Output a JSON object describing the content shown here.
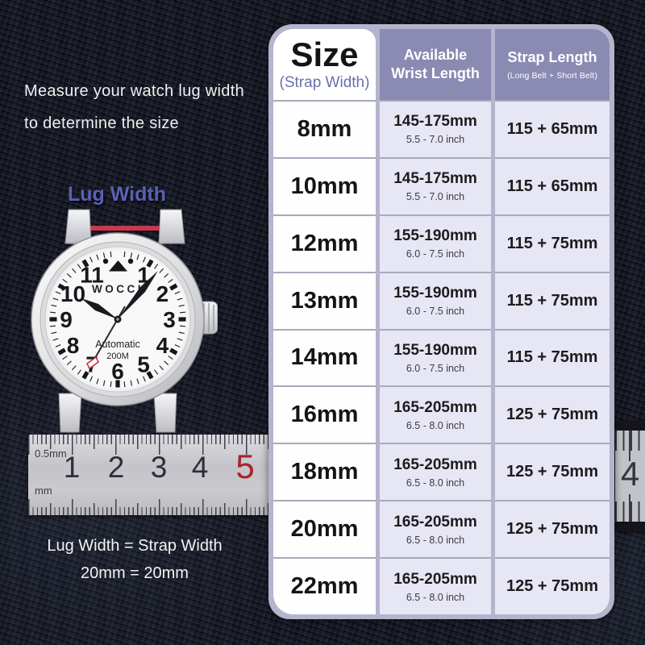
{
  "instructions": {
    "line1": "Measure your watch lug width",
    "line2": "to determine the size"
  },
  "lug_width_label": "Lug Width",
  "watch": {
    "brand": "WOCCI",
    "movement": "Automatic",
    "water_resistance": "200M",
    "dial_numbers": [
      "1",
      "2",
      "3",
      "4",
      "5",
      "6",
      "7",
      "8",
      "9",
      "10",
      "11"
    ]
  },
  "ruler": {
    "top_scale_label": "0.5mm",
    "bottom_scale_label": "mm",
    "numbers": [
      "1",
      "2",
      "3",
      "4",
      "5"
    ],
    "right_segment_number": "4"
  },
  "equation": {
    "line1": "Lug Width = Strap Width",
    "line2": "20mm = 20mm"
  },
  "table": {
    "header": {
      "col1_title": "Size",
      "col1_subtitle": "(Strap Width)",
      "col2_title": "Available Wrist Length",
      "col3_title": "Strap Length",
      "col3_subtitle": "(Long Belt + Short Belt)"
    },
    "rows": [
      {
        "size": "8mm",
        "wrist": "145-175mm",
        "inch": "5.5 - 7.0 inch",
        "strap": "115 + 65mm"
      },
      {
        "size": "10mm",
        "wrist": "145-175mm",
        "inch": "5.5 - 7.0 inch",
        "strap": "115 + 65mm"
      },
      {
        "size": "12mm",
        "wrist": "155-190mm",
        "inch": "6.0 - 7.5 inch",
        "strap": "115 + 75mm"
      },
      {
        "size": "13mm",
        "wrist": "155-190mm",
        "inch": "6.0 - 7.5 inch",
        "strap": "115 + 75mm"
      },
      {
        "size": "14mm",
        "wrist": "155-190mm",
        "inch": "6.0 - 7.5 inch",
        "strap": "115 + 75mm"
      },
      {
        "size": "16mm",
        "wrist": "165-205mm",
        "inch": "6.5 - 8.0 inch",
        "strap": "125 + 75mm"
      },
      {
        "size": "18mm",
        "wrist": "165-205mm",
        "inch": "6.5 - 8.0 inch",
        "strap": "125 + 75mm"
      },
      {
        "size": "20mm",
        "wrist": "165-205mm",
        "inch": "6.5 - 8.0 inch",
        "strap": "125 + 75mm"
      },
      {
        "size": "22mm",
        "wrist": "165-205mm",
        "inch": "6.5 - 8.0 inch",
        "strap": "125 + 75mm"
      }
    ]
  },
  "chart_data": {
    "type": "table",
    "columns": [
      "Size (Strap Width)",
      "Available Wrist Length",
      "Strap Length (Long Belt + Short Belt)"
    ],
    "rows": [
      [
        "8mm",
        "145-175mm / 5.5 - 7.0 inch",
        "115 + 65mm"
      ],
      [
        "10mm",
        "145-175mm / 5.5 - 7.0 inch",
        "115 + 65mm"
      ],
      [
        "12mm",
        "155-190mm / 6.0 - 7.5 inch",
        "115 + 75mm"
      ],
      [
        "13mm",
        "155-190mm / 6.0 - 7.5 inch",
        "115 + 75mm"
      ],
      [
        "14mm",
        "155-190mm / 6.0 - 7.5 inch",
        "115 + 75mm"
      ],
      [
        "16mm",
        "165-205mm / 6.5 - 8.0 inch",
        "125 + 75mm"
      ],
      [
        "18mm",
        "165-205mm / 6.5 - 8.0 inch",
        "125 + 75mm"
      ],
      [
        "20mm",
        "165-205mm / 6.5 - 8.0 inch",
        "125 + 75mm"
      ],
      [
        "22mm",
        "165-205mm / 6.5 - 8.0 inch",
        "125 + 75mm"
      ]
    ]
  },
  "colors": {
    "accent_red": "#c9384e",
    "label_purple": "#5b61b2",
    "table_frame": "#b4b4cc",
    "header_purple": "#8a8ab3",
    "cell_lavender": "#e6e6f5",
    "ruler_red_number": "#a8232b",
    "background": "#151720"
  }
}
